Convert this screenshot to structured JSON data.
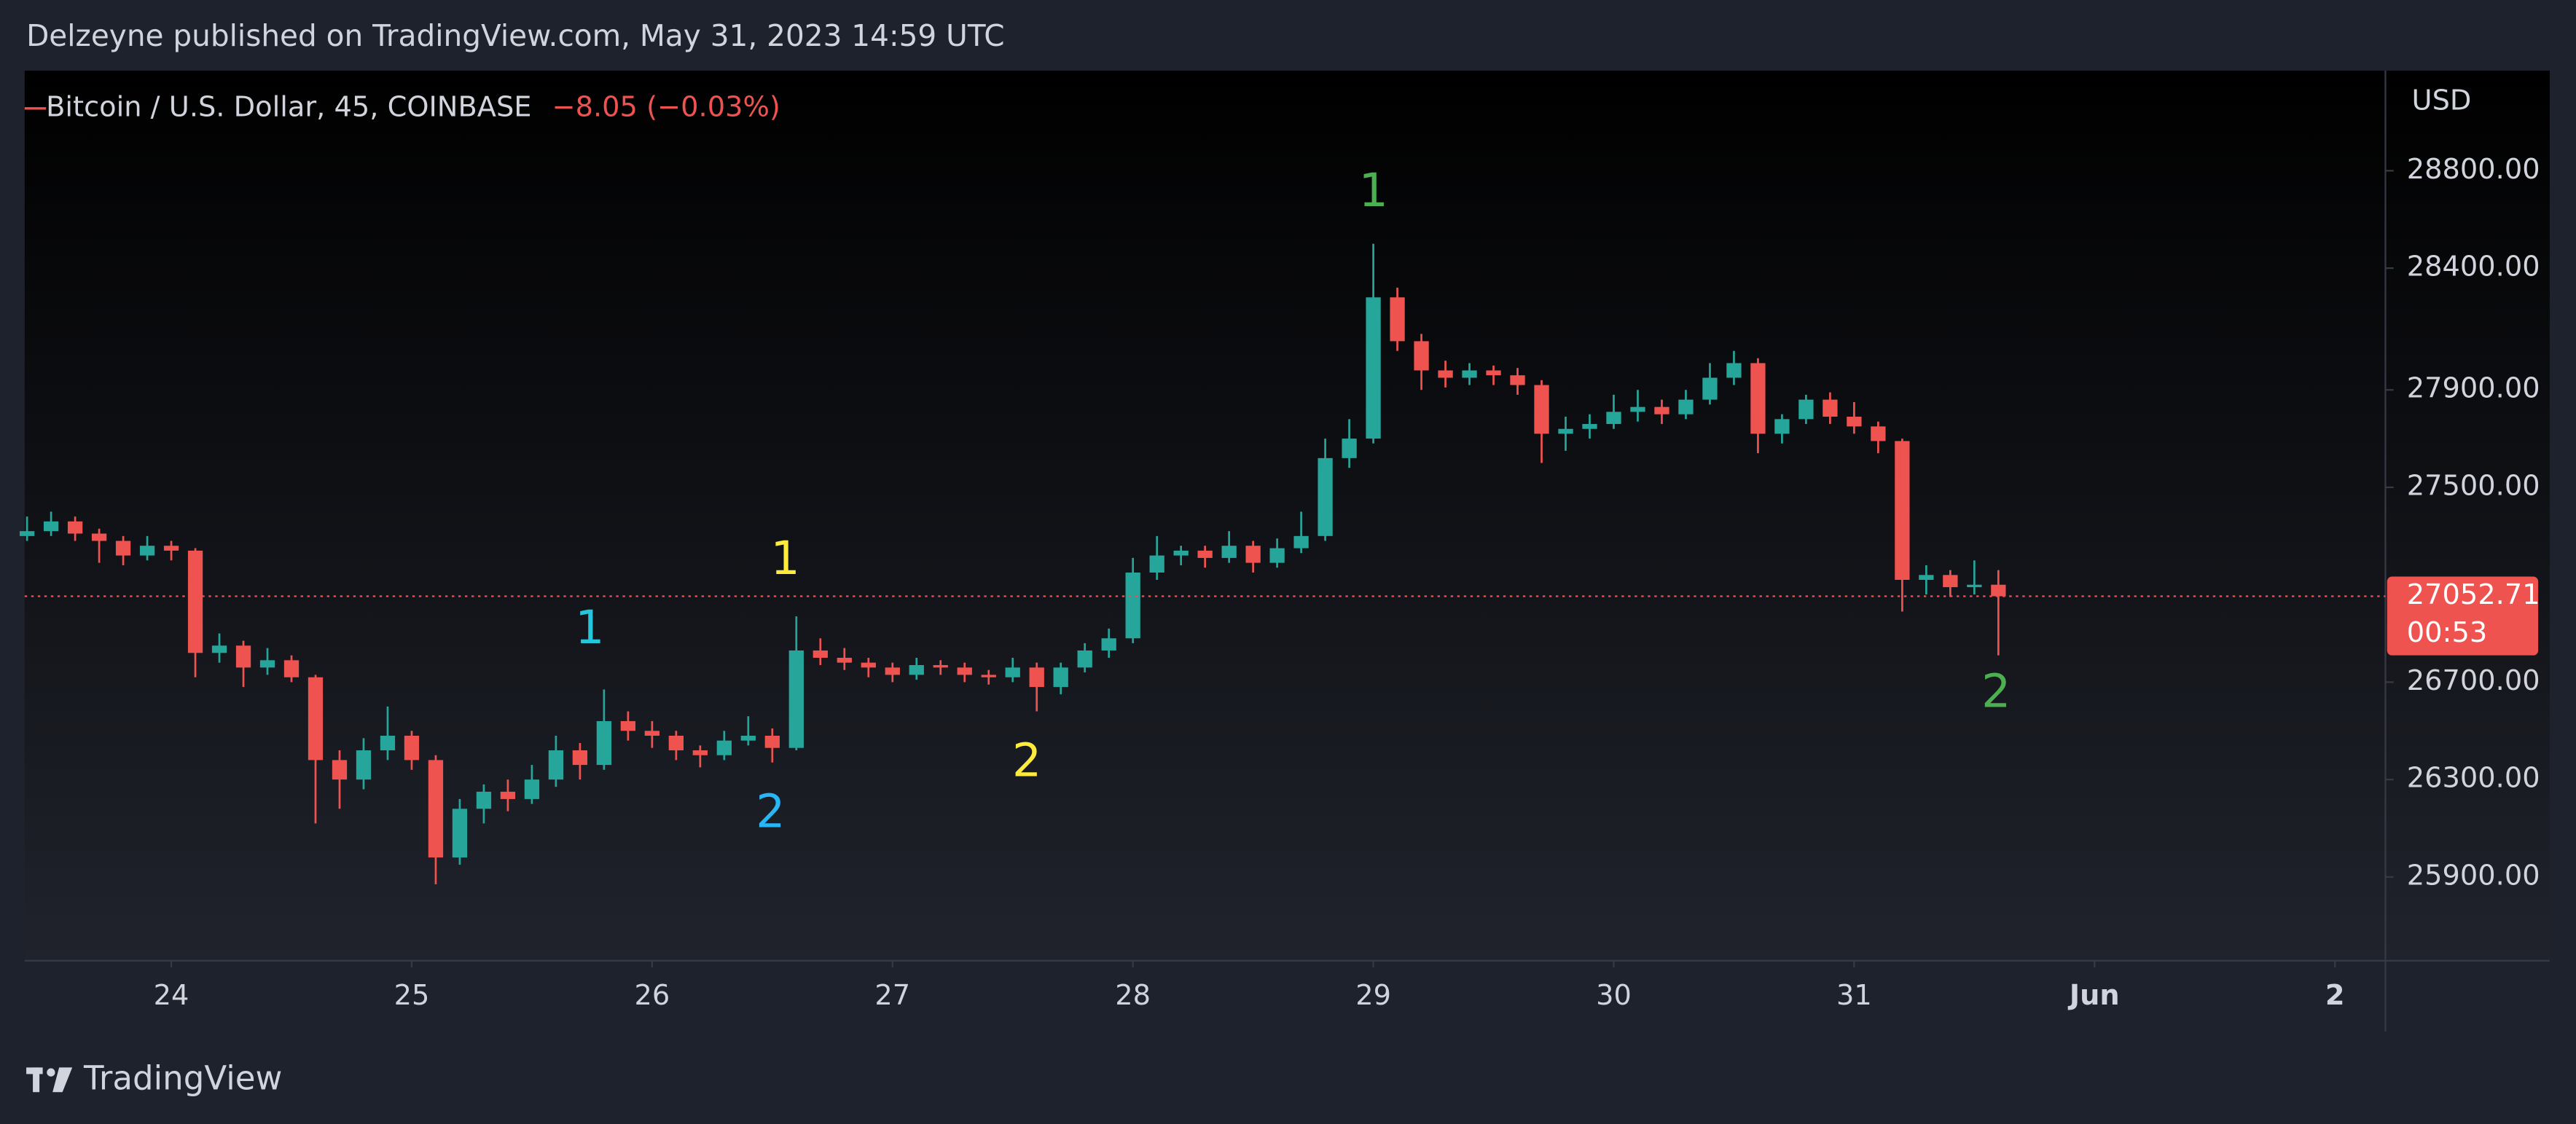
{
  "header": "Delzeyne published on TradingView.com, May 31, 2023 14:59 UTC",
  "footer": "TradingView",
  "chart_data": {
    "type": "candlestick",
    "symbol": "Bitcoin / U.S. Dollar, 45, COINBASE",
    "change": "−8.05 (−0.03%)",
    "currency": "USD",
    "last_price": {
      "value": 27052.71,
      "label": "27052.71"
    },
    "countdown": "00:53",
    "up_color": "#26a69a",
    "down_color": "#ef5350",
    "xlim": [
      23.39,
      33.21
    ],
    "xticks": [
      24,
      25,
      26,
      27,
      28,
      29,
      30,
      31,
      {
        "value": 32,
        "label": "Jun"
      },
      {
        "value": 33,
        "label": "2"
      }
    ],
    "ylim": [
      25556,
      29211
    ],
    "yticks": [
      {
        "value": 25900,
        "label": "25900.00"
      },
      {
        "value": 26300,
        "label": "26300.00"
      },
      {
        "value": 26700,
        "label": "26700.00"
      },
      {
        "value": 27500,
        "label": "27500.00"
      },
      {
        "value": 27900,
        "label": "27900.00"
      },
      {
        "value": 28400,
        "label": "28400.00"
      },
      {
        "value": 28800,
        "label": "28800.00"
      }
    ],
    "annotations": [
      {
        "text": "1",
        "color": "#4caf50"
      },
      {
        "text": "2",
        "color": "#4caf50"
      },
      {
        "text": "1",
        "color": "#ffeb3b"
      },
      {
        "text": "2",
        "color": "#ffeb3b"
      },
      {
        "text": "1",
        "color": "#26c6da"
      },
      {
        "text": "2",
        "color": "#29b6f6"
      }
    ],
    "x": [
      23.4,
      23.5,
      23.6,
      23.7,
      23.8,
      23.9,
      24.0,
      24.1,
      24.2,
      24.3,
      24.4,
      24.5,
      24.6,
      24.7,
      24.8,
      24.9,
      25.0,
      25.1,
      25.2,
      25.3,
      25.4,
      25.5,
      25.6,
      25.7,
      25.8,
      25.9,
      26.0,
      26.1,
      26.2,
      26.3,
      26.4,
      26.5,
      26.6,
      26.7,
      26.8,
      26.9,
      27.0,
      27.1,
      27.2,
      27.3,
      27.4,
      27.5,
      27.6,
      27.7,
      27.8,
      27.9,
      28.0,
      28.1,
      28.2,
      28.3,
      28.4,
      28.5,
      28.6,
      28.7,
      28.8,
      28.9,
      29.0,
      29.1,
      29.2,
      29.3,
      29.4,
      29.5,
      29.6,
      29.7,
      29.8,
      29.9,
      30.0,
      30.1,
      30.2,
      30.3,
      30.4,
      30.5,
      30.6,
      30.7,
      30.8,
      30.9,
      31.0,
      31.1,
      31.2,
      31.3,
      31.4,
      31.5,
      31.6
    ],
    "open": [
      27300,
      27320,
      27360,
      27310,
      27280,
      27220,
      27260,
      27240,
      26820,
      26850,
      26760,
      26790,
      26720,
      26380,
      26300,
      26420,
      26480,
      26380,
      25980,
      26180,
      26250,
      26220,
      26300,
      26420,
      26360,
      26540,
      26500,
      26480,
      26420,
      26400,
      26460,
      26480,
      26430,
      26830,
      26800,
      26780,
      26760,
      26730,
      26770,
      26760,
      26730,
      26720,
      26760,
      26680,
      26760,
      26830,
      26880,
      27150,
      27220,
      27240,
      27210,
      27260,
      27190,
      27250,
      27300,
      27620,
      27700,
      28280,
      28100,
      27980,
      27950,
      27980,
      27960,
      27920,
      27720,
      27740,
      27760,
      27810,
      27830,
      27800,
      27860,
      27950,
      28010,
      27720,
      27780,
      27860,
      27790,
      27750,
      27690,
      27120,
      27140,
      27090,
      27100
    ],
    "high": [
      27380,
      27400,
      27380,
      27330,
      27300,
      27300,
      27280,
      27250,
      26900,
      26870,
      26840,
      26810,
      26730,
      26420,
      26470,
      26600,
      26500,
      26400,
      26220,
      26280,
      26300,
      26360,
      26480,
      26450,
      26670,
      26580,
      26540,
      26500,
      26440,
      26500,
      26560,
      26510,
      26970,
      26880,
      26840,
      26800,
      26780,
      26800,
      26790,
      26780,
      26750,
      26800,
      26780,
      26780,
      26860,
      26920,
      27210,
      27300,
      27260,
      27260,
      27320,
      27280,
      27290,
      27400,
      27700,
      27780,
      28500,
      28320,
      28130,
      28020,
      28010,
      28000,
      27990,
      27940,
      27790,
      27800,
      27880,
      27900,
      27860,
      27900,
      28010,
      28060,
      28030,
      27800,
      27880,
      27890,
      27850,
      27770,
      27700,
      27180,
      27160,
      27200,
      27160
    ],
    "low": [
      27280,
      27300,
      27280,
      27190,
      27180,
      27200,
      27200,
      26720,
      26780,
      26680,
      26730,
      26700,
      26120,
      26180,
      26260,
      26380,
      26340,
      25870,
      25950,
      26120,
      26170,
      26200,
      26270,
      26300,
      26340,
      26460,
      26430,
      26380,
      26350,
      26380,
      26440,
      26370,
      26420,
      26770,
      26750,
      26720,
      26700,
      26710,
      26730,
      26700,
      26690,
      26700,
      26580,
      26650,
      26740,
      26800,
      26860,
      27120,
      27180,
      27170,
      27190,
      27150,
      27170,
      27230,
      27280,
      27580,
      27680,
      28060,
      27900,
      27910,
      27920,
      27920,
      27880,
      27600,
      27650,
      27700,
      27740,
      27770,
      27760,
      27780,
      27840,
      27920,
      27640,
      27680,
      27760,
      27760,
      27720,
      27640,
      26990,
      27060,
      27050,
      27060,
      26810
    ],
    "close": [
      27320,
      27360,
      27310,
      27280,
      27220,
      27260,
      27240,
      26820,
      26850,
      26760,
      26790,
      26720,
      26380,
      26300,
      26420,
      26480,
      26380,
      25980,
      26180,
      26250,
      26220,
      26300,
      26420,
      26360,
      26540,
      26500,
      26480,
      26420,
      26400,
      26460,
      26480,
      26430,
      26830,
      26800,
      26780,
      26760,
      26730,
      26770,
      26760,
      26730,
      26720,
      26760,
      26680,
      26760,
      26830,
      26880,
      27150,
      27220,
      27240,
      27210,
      27260,
      27190,
      27250,
      27300,
      27620,
      27700,
      28280,
      28100,
      27980,
      27950,
      27980,
      27960,
      27920,
      27720,
      27740,
      27760,
      27810,
      27830,
      27800,
      27860,
      27950,
      28010,
      27720,
      27780,
      27860,
      27790,
      27750,
      27690,
      27120,
      27140,
      27090,
      27100,
      27052.71
    ]
  }
}
